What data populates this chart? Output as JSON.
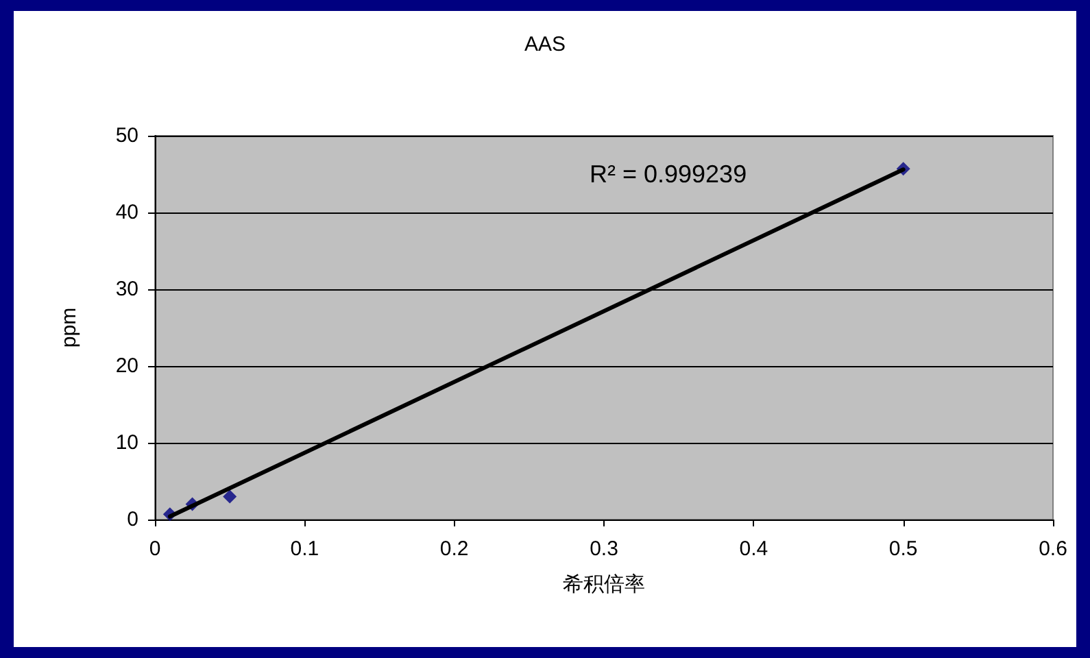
{
  "chart_data": {
    "type": "scatter",
    "title": "AAS",
    "xlabel": "希积倍率",
    "ylabel": "ppm",
    "series": [
      {
        "type": "scatter",
        "color": "#000080",
        "x": [
          0.01,
          0.025,
          0.05,
          0.5
        ],
        "values": [
          0.7,
          2,
          3,
          45.7
        ],
        "marker": "diamond"
      },
      {
        "type": "line",
        "color": "#000000",
        "x": [
          0.01,
          0.5
        ],
        "values": [
          0.4,
          45.6
        ],
        "line_style": "solid",
        "marker": "none"
      }
    ],
    "annotations": [
      "R² = 0.999239"
    ],
    "xlim": [
      0,
      0.6
    ],
    "xticks": [
      0,
      0.1,
      0.2,
      0.3,
      0.4,
      0.5,
      0.6
    ],
    "ylim": [
      0,
      50
    ],
    "yticks": [
      0,
      10,
      20,
      30,
      40,
      50
    ],
    "grid": "y"
  }
}
